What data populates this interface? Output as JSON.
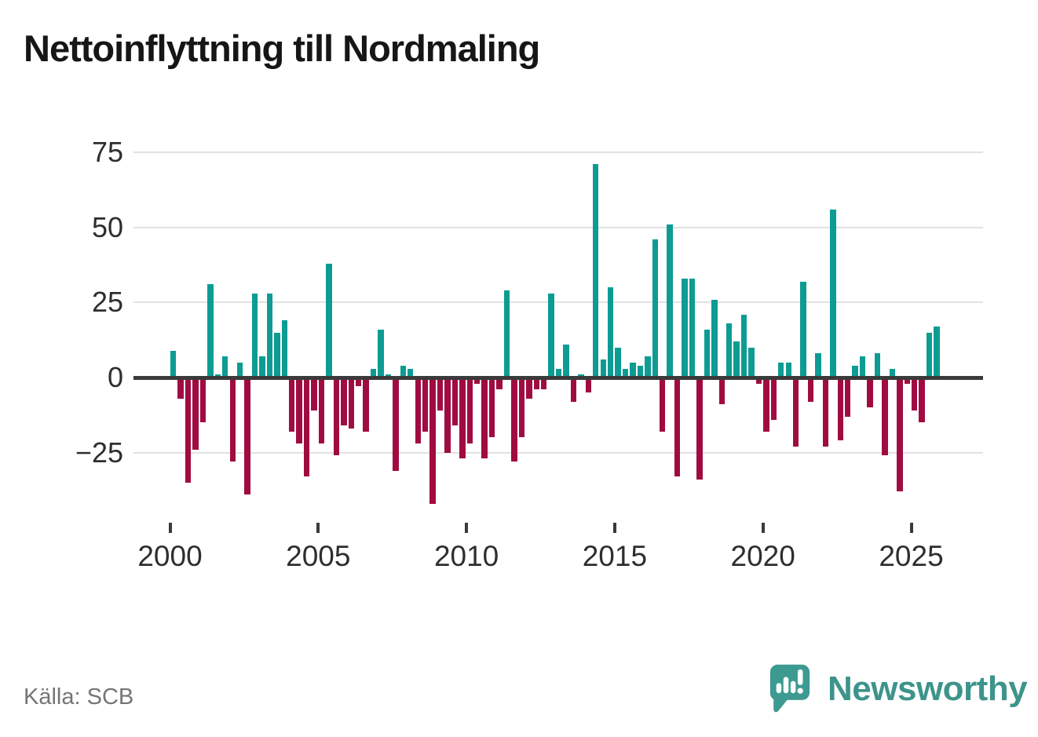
{
  "title": "Nettoinflyttning till Nordmaling",
  "source": "Källa: SCB",
  "branding": {
    "wordmark": "Newsworthy",
    "icon": "speech-bubble-bar-chart-icon"
  },
  "colors": {
    "positive": "#0d9c93",
    "negative": "#a00c41",
    "zero_axis": "#3a3a3a",
    "grid": "#e2e2e2",
    "tick_text": "#2e2e2e",
    "muted_text": "#757575",
    "brand_teal": "#3d948b"
  },
  "chart_data": {
    "type": "bar",
    "title": "Nettoinflyttning till Nordmaling",
    "frequency": "quarterly",
    "grid": true,
    "legend": false,
    "y_ticks": [
      75,
      50,
      25,
      0,
      -25
    ],
    "y_tick_labels": [
      "75",
      "50",
      "25",
      "0",
      "−25"
    ],
    "x_ticks": [
      2000,
      2005,
      2010,
      2015,
      2020,
      2025
    ],
    "x_tick_labels": [
      "2000",
      "2005",
      "2010",
      "2015",
      "2020",
      "2025"
    ],
    "ylim": [
      -47,
      80
    ],
    "series": [
      {
        "name": "Nettoinflyttning",
        "start": "2000Q1",
        "years": [
          {
            "year": 2000,
            "q": [
              9,
              -7,
              -35,
              -24
            ]
          },
          {
            "year": 2001,
            "q": [
              -15,
              31,
              1,
              7
            ]
          },
          {
            "year": 2002,
            "q": [
              -28,
              5,
              -39,
              28
            ]
          },
          {
            "year": 2003,
            "q": [
              7,
              28,
              15,
              19
            ]
          },
          {
            "year": 2004,
            "q": [
              -18,
              -22,
              -33,
              -11
            ]
          },
          {
            "year": 2005,
            "q": [
              -22,
              38,
              -26,
              -16
            ]
          },
          {
            "year": 2006,
            "q": [
              -17,
              -3,
              -18,
              3
            ]
          },
          {
            "year": 2007,
            "q": [
              16,
              1,
              -31,
              4
            ]
          },
          {
            "year": 2008,
            "q": [
              3,
              -22,
              -18,
              -42
            ]
          },
          {
            "year": 2009,
            "q": [
              -11,
              -25,
              -16,
              -27
            ]
          },
          {
            "year": 2010,
            "q": [
              -22,
              -2,
              -27,
              -20
            ]
          },
          {
            "year": 2011,
            "q": [
              -4,
              29,
              -28,
              -20
            ]
          },
          {
            "year": 2012,
            "q": [
              -7,
              -4,
              -4,
              28
            ]
          },
          {
            "year": 2013,
            "q": [
              3,
              11,
              -8,
              1
            ]
          },
          {
            "year": 2014,
            "q": [
              -5,
              71,
              6,
              30
            ]
          },
          {
            "year": 2015,
            "q": [
              10,
              3,
              5,
              4
            ]
          },
          {
            "year": 2016,
            "q": [
              7,
              46,
              -18,
              51
            ]
          },
          {
            "year": 2017,
            "q": [
              -33,
              33,
              33,
              -34
            ]
          },
          {
            "year": 2018,
            "q": [
              16,
              26,
              -9,
              18
            ]
          },
          {
            "year": 2019,
            "q": [
              12,
              21,
              10,
              -2
            ]
          },
          {
            "year": 2020,
            "q": [
              -18,
              -14,
              5,
              5
            ]
          },
          {
            "year": 2021,
            "q": [
              -23,
              32,
              -8,
              8
            ]
          },
          {
            "year": 2022,
            "q": [
              -23,
              56,
              -21,
              -13
            ]
          },
          {
            "year": 2023,
            "q": [
              4,
              7,
              -10,
              8
            ]
          },
          {
            "year": 2024,
            "q": [
              -26,
              3,
              -38,
              -2
            ]
          },
          {
            "year": 2025,
            "q": [
              -11,
              -15,
              15,
              17
            ]
          }
        ]
      }
    ]
  }
}
